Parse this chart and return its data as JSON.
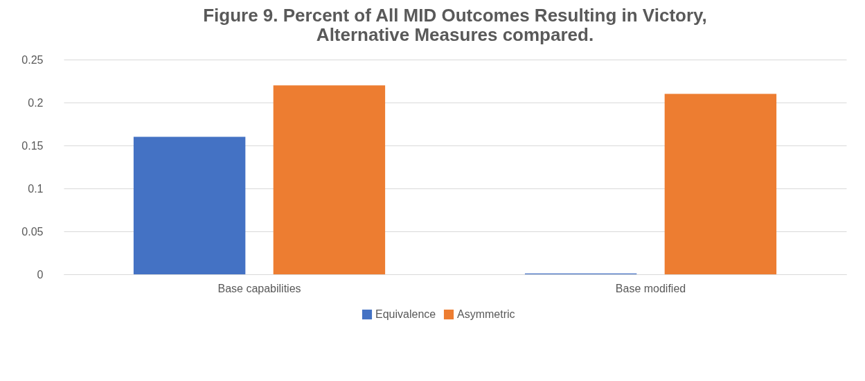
{
  "chart_data": {
    "type": "bar",
    "title": "Figure 9. Percent of All MID Outcomes Resulting in Victory,\nAlternative Measures compared.",
    "categories": [
      "Base capabilities",
      "Base modified"
    ],
    "series": [
      {
        "name": "Equivalence",
        "color": "#4472c4",
        "values": [
          0.16,
          0.001
        ]
      },
      {
        "name": "Asymmetric",
        "color": "#ed7d31",
        "values": [
          0.22,
          0.21
        ]
      }
    ],
    "ylim": [
      0,
      0.25
    ],
    "yticks": [
      0,
      0.05,
      0.1,
      0.15,
      0.2,
      0.25
    ],
    "grid": "y",
    "legend": "bottom"
  }
}
